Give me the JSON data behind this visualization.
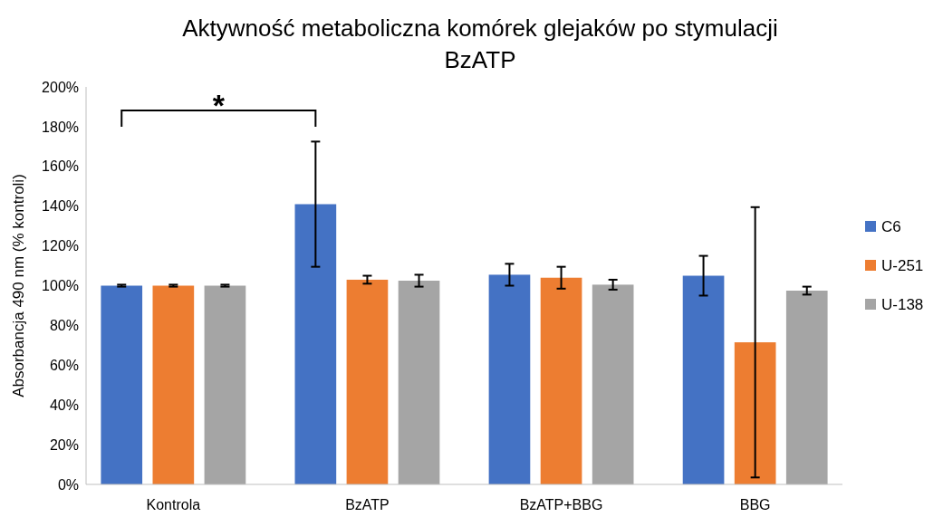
{
  "chart_data": {
    "type": "bar",
    "title": "Aktywność metaboliczna komórek glejaków po stymulacji BzATP",
    "ylabel": "Absorbancja 490 nm (% kontroli)",
    "categories": [
      "Kontrola",
      "BzATP",
      "BzATP+BBG",
      "BBG"
    ],
    "series": [
      {
        "name": "C6",
        "color": "#4472c4",
        "values": [
          100,
          141,
          105.5,
          105
        ],
        "errors": [
          0.5,
          31.5,
          5.5,
          10
        ]
      },
      {
        "name": "U-251",
        "color": "#ed7d31",
        "values": [
          100,
          103,
          104,
          71.5
        ],
        "errors": [
          0.5,
          2,
          5.5,
          68
        ]
      },
      {
        "name": "U-138",
        "color": "#a5a5a5",
        "values": [
          100,
          102.5,
          100.5,
          97.5
        ],
        "errors": [
          0.5,
          3,
          2.5,
          2
        ]
      }
    ],
    "ylim": [
      0,
      200
    ],
    "yticks": [
      {
        "value": 0,
        "label": "0%"
      },
      {
        "value": 20,
        "label": "20%"
      },
      {
        "value": 40,
        "label": "40%"
      },
      {
        "value": 60,
        "label": "60%"
      },
      {
        "value": 80,
        "label": "80%"
      },
      {
        "value": 100,
        "label": "100%"
      },
      {
        "value": 120,
        "label": "120%"
      },
      {
        "value": 140,
        "label": "140%"
      },
      {
        "value": 160,
        "label": "160%"
      },
      {
        "value": 180,
        "label": "180%"
      },
      {
        "value": 200,
        "label": "200%"
      }
    ],
    "grid": false,
    "legend": "right",
    "annotations": [
      "*"
    ]
  }
}
